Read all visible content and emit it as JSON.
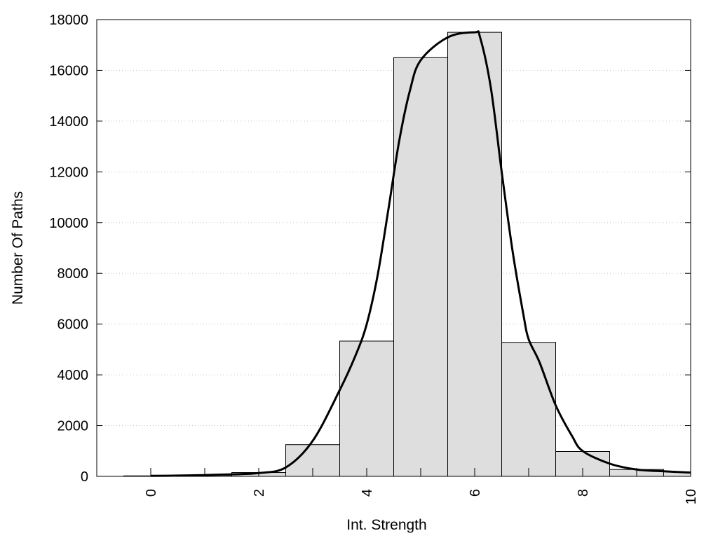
{
  "chart_data": {
    "type": "bar",
    "xlabel": "Int. Strength",
    "ylabel": "Number Of Paths",
    "xlim": [
      -1,
      10
    ],
    "ylim": [
      0,
      18000
    ],
    "x_ticks": [
      0,
      2,
      4,
      6,
      8,
      10
    ],
    "y_ticks": [
      0,
      2000,
      4000,
      6000,
      8000,
      10000,
      12000,
      14000,
      16000,
      18000
    ],
    "grid": "horizontal dotted",
    "bar_fill": "#dedede",
    "line_color": "#000000",
    "bars": {
      "x": [
        0,
        1,
        2,
        3,
        4,
        5,
        6,
        7,
        8,
        9,
        10
      ],
      "values": [
        20,
        40,
        150,
        1250,
        5330,
        16500,
        17500,
        5280,
        980,
        270,
        180
      ]
    },
    "curve": {
      "x": [
        0,
        0.5,
        1,
        1.5,
        2,
        2.5,
        3,
        3.5,
        3.8,
        4,
        4.2,
        4.4,
        4.6,
        4.8,
        5,
        5.5,
        6,
        6.1,
        6.3,
        6.5,
        6.7,
        6.9,
        7,
        7.2,
        7.5,
        7.8,
        8,
        8.5,
        9,
        9.5,
        10
      ],
      "y": [
        20,
        30,
        50,
        80,
        130,
        350,
        1400,
        3400,
        4800,
        6000,
        7900,
        10500,
        13200,
        15200,
        16400,
        17300,
        17500,
        17300,
        15300,
        12000,
        8900,
        6400,
        5400,
        4500,
        2800,
        1600,
        1000,
        500,
        270,
        200,
        150
      ]
    }
  }
}
